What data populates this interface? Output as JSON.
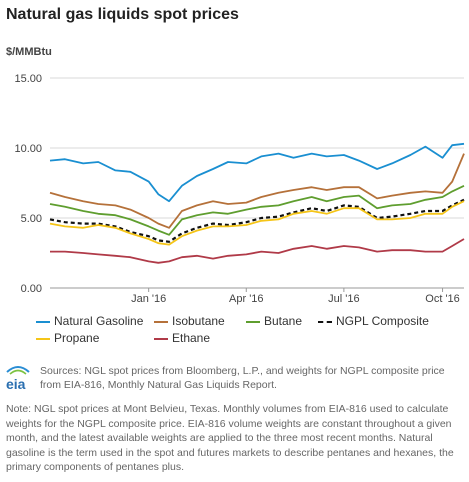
{
  "title": "Natural gas liquids spot prices",
  "unit_label": "$/MMBtu",
  "source_text": "Sources: NGL spot prices from Bloomberg, L.P., and weights for NGPL composite price from EIA-816, Monthly Natural Gas Liquids Report.",
  "note_text": "Note: NGL spot prices at Mont Belvieu, Texas. Monthly volumes from EIA-816 used to calculate weights for the NGPL composite price. EIA-816 volume weights are constant throughout a given month, and the latest available weights are applied to the three most recent months. Natural gasoline is the term used in the spot and futures markets to describe pentanes and hexanes, the primary components of pentanes plus.",
  "logo": {
    "icon": "eia-logo",
    "text": "eia"
  },
  "chart_data": {
    "type": "line",
    "title": "Natural gas liquids spot prices",
    "ylabel": "$/MMBtu",
    "xlabel": "",
    "ylim": [
      0,
      15
    ],
    "yticks": [
      0,
      5,
      10,
      15
    ],
    "ytick_labels": [
      "0.00",
      "5.00",
      "10.00",
      "15.00"
    ],
    "xlim": [
      "2015-10-01",
      "2016-10-21"
    ],
    "xticks": [
      "2016-01-01",
      "2016-04-01",
      "2016-07-01",
      "2016-10-01"
    ],
    "xtick_labels": [
      "Jan '16",
      "Apr '16",
      "Jul '16",
      "Oct '16"
    ],
    "grid": "horizontal",
    "legend_position": "bottom",
    "x": [
      "2015-10-01",
      "2015-10-15",
      "2015-11-01",
      "2015-11-15",
      "2015-12-01",
      "2015-12-15",
      "2016-01-01",
      "2016-01-10",
      "2016-01-20",
      "2016-02-01",
      "2016-02-15",
      "2016-03-01",
      "2016-03-15",
      "2016-04-01",
      "2016-04-15",
      "2016-05-01",
      "2016-05-15",
      "2016-06-01",
      "2016-06-15",
      "2016-07-01",
      "2016-07-15",
      "2016-08-01",
      "2016-08-15",
      "2016-09-01",
      "2016-09-15",
      "2016-10-01",
      "2016-10-10",
      "2016-10-21"
    ],
    "series": [
      {
        "name": "Natural Gasoline",
        "color": "#1a8fd1",
        "dashed": false,
        "values": [
          9.1,
          9.2,
          8.9,
          9.0,
          8.4,
          8.3,
          7.6,
          6.7,
          6.2,
          7.3,
          8.0,
          8.5,
          9.0,
          8.9,
          9.4,
          9.6,
          9.3,
          9.6,
          9.4,
          9.5,
          9.1,
          8.5,
          8.9,
          9.5,
          10.1,
          9.3,
          10.2,
          10.3
        ]
      },
      {
        "name": "Isobutane",
        "color": "#b5713a",
        "dashed": false,
        "values": [
          6.8,
          6.5,
          6.2,
          6.0,
          5.9,
          5.6,
          5.0,
          4.6,
          4.3,
          5.5,
          5.9,
          6.2,
          6.0,
          6.1,
          6.5,
          6.8,
          7.0,
          7.2,
          7.0,
          7.2,
          7.2,
          6.4,
          6.6,
          6.8,
          6.9,
          6.8,
          7.6,
          9.6
        ]
      },
      {
        "name": "Butane",
        "color": "#5f9e2f",
        "dashed": false,
        "values": [
          6.0,
          5.8,
          5.5,
          5.3,
          5.2,
          4.9,
          4.4,
          4.1,
          3.8,
          4.9,
          5.2,
          5.4,
          5.3,
          5.6,
          5.8,
          5.9,
          6.2,
          6.5,
          6.2,
          6.5,
          6.6,
          5.7,
          5.9,
          6.0,
          6.3,
          6.5,
          6.9,
          7.3
        ]
      },
      {
        "name": "NGPL Composite",
        "color": "#111111",
        "dashed": true,
        "values": [
          4.9,
          4.7,
          4.6,
          4.6,
          4.4,
          4.0,
          3.7,
          3.4,
          3.3,
          3.9,
          4.3,
          4.6,
          4.5,
          4.7,
          5.0,
          5.1,
          5.4,
          5.7,
          5.5,
          5.9,
          5.8,
          5.0,
          5.1,
          5.3,
          5.5,
          5.5,
          5.9,
          6.3
        ]
      },
      {
        "name": "Propane",
        "color": "#f5c518",
        "dashed": false,
        "values": [
          4.6,
          4.4,
          4.3,
          4.5,
          4.3,
          3.9,
          3.5,
          3.2,
          3.1,
          3.7,
          4.1,
          4.4,
          4.4,
          4.5,
          4.8,
          4.9,
          5.3,
          5.5,
          5.3,
          5.7,
          5.7,
          4.9,
          4.9,
          5.0,
          5.3,
          5.3,
          5.8,
          6.2
        ]
      },
      {
        "name": "Ethane",
        "color": "#b03a48",
        "dashed": false,
        "values": [
          2.6,
          2.6,
          2.5,
          2.4,
          2.3,
          2.2,
          1.9,
          1.8,
          1.9,
          2.2,
          2.3,
          2.1,
          2.3,
          2.4,
          2.6,
          2.5,
          2.8,
          3.0,
          2.8,
          3.0,
          2.9,
          2.6,
          2.7,
          2.7,
          2.6,
          2.6,
          3.0,
          3.5
        ]
      }
    ]
  }
}
